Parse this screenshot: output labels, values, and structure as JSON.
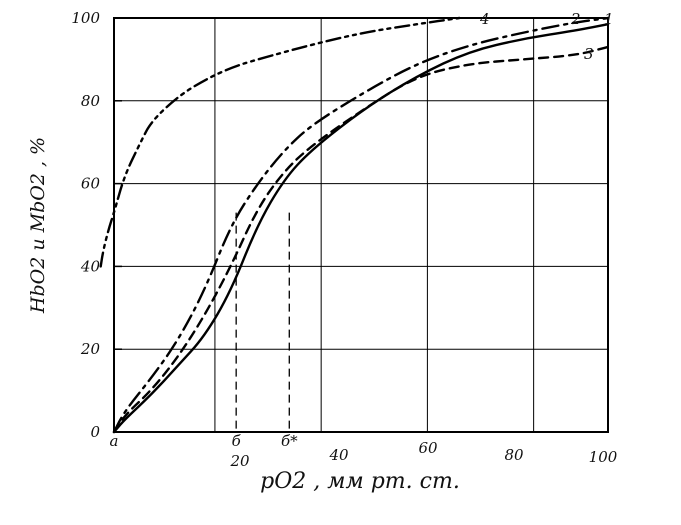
{
  "chart_data": {
    "type": "line",
    "xlabel": "pO2 , мм рт. ст.",
    "ylabel": "HbO2 и MbO2 , %",
    "xlim": [
      0,
      100
    ],
    "ylim": [
      0,
      100
    ],
    "grid": true,
    "x_ticks": [
      "20",
      "40",
      "60",
      "80",
      "100"
    ],
    "y_ticks": [
      "0",
      "20",
      "40",
      "60",
      "80",
      "100"
    ],
    "series": [
      {
        "name": "1",
        "line_style": "solid",
        "x": [
          3,
          5,
          10,
          15,
          20,
          25,
          30,
          35,
          40,
          50,
          60,
          70,
          80,
          90,
          96
        ],
        "y": [
          0,
          3,
          9,
          16,
          23,
          34,
          50,
          61,
          68,
          78,
          86,
          92,
          95,
          97,
          98.5
        ]
      },
      {
        "name": "2",
        "line_style": "dash-dot",
        "x": [
          3,
          5,
          10,
          15,
          20,
          25,
          30,
          35,
          40,
          50,
          60,
          70,
          80,
          90,
          96
        ],
        "y": [
          0,
          5,
          13,
          22,
          34,
          50,
          60,
          68,
          74,
          82,
          89,
          93.5,
          96.5,
          99,
          100
        ]
      },
      {
        "name": "3",
        "line_style": "dashed",
        "x": [
          3,
          5,
          10,
          15,
          20,
          25,
          30,
          35,
          40,
          50,
          60,
          70,
          80,
          90,
          96
        ],
        "y": [
          0,
          4,
          10,
          18,
          28,
          40,
          54,
          63,
          69,
          78,
          86,
          89,
          90,
          91,
          93
        ]
      },
      {
        "name": "4",
        "line_style": "dash-dot-dot",
        "x": [
          0.5,
          1,
          2,
          3,
          5,
          8,
          10,
          15,
          20,
          25,
          30,
          40,
          50,
          60,
          68
        ],
        "y": [
          40,
          44,
          49,
          53,
          62,
          70,
          75,
          81,
          85,
          88,
          90,
          93.5,
          96.5,
          98.5,
          100
        ]
      }
    ],
    "markers": [
      {
        "label": "а",
        "x": 3,
        "y": 50
      },
      {
        "label": "б",
        "x": 26,
        "y": 53
      },
      {
        "label": "б*",
        "x": 36,
        "y": 53
      }
    ]
  }
}
